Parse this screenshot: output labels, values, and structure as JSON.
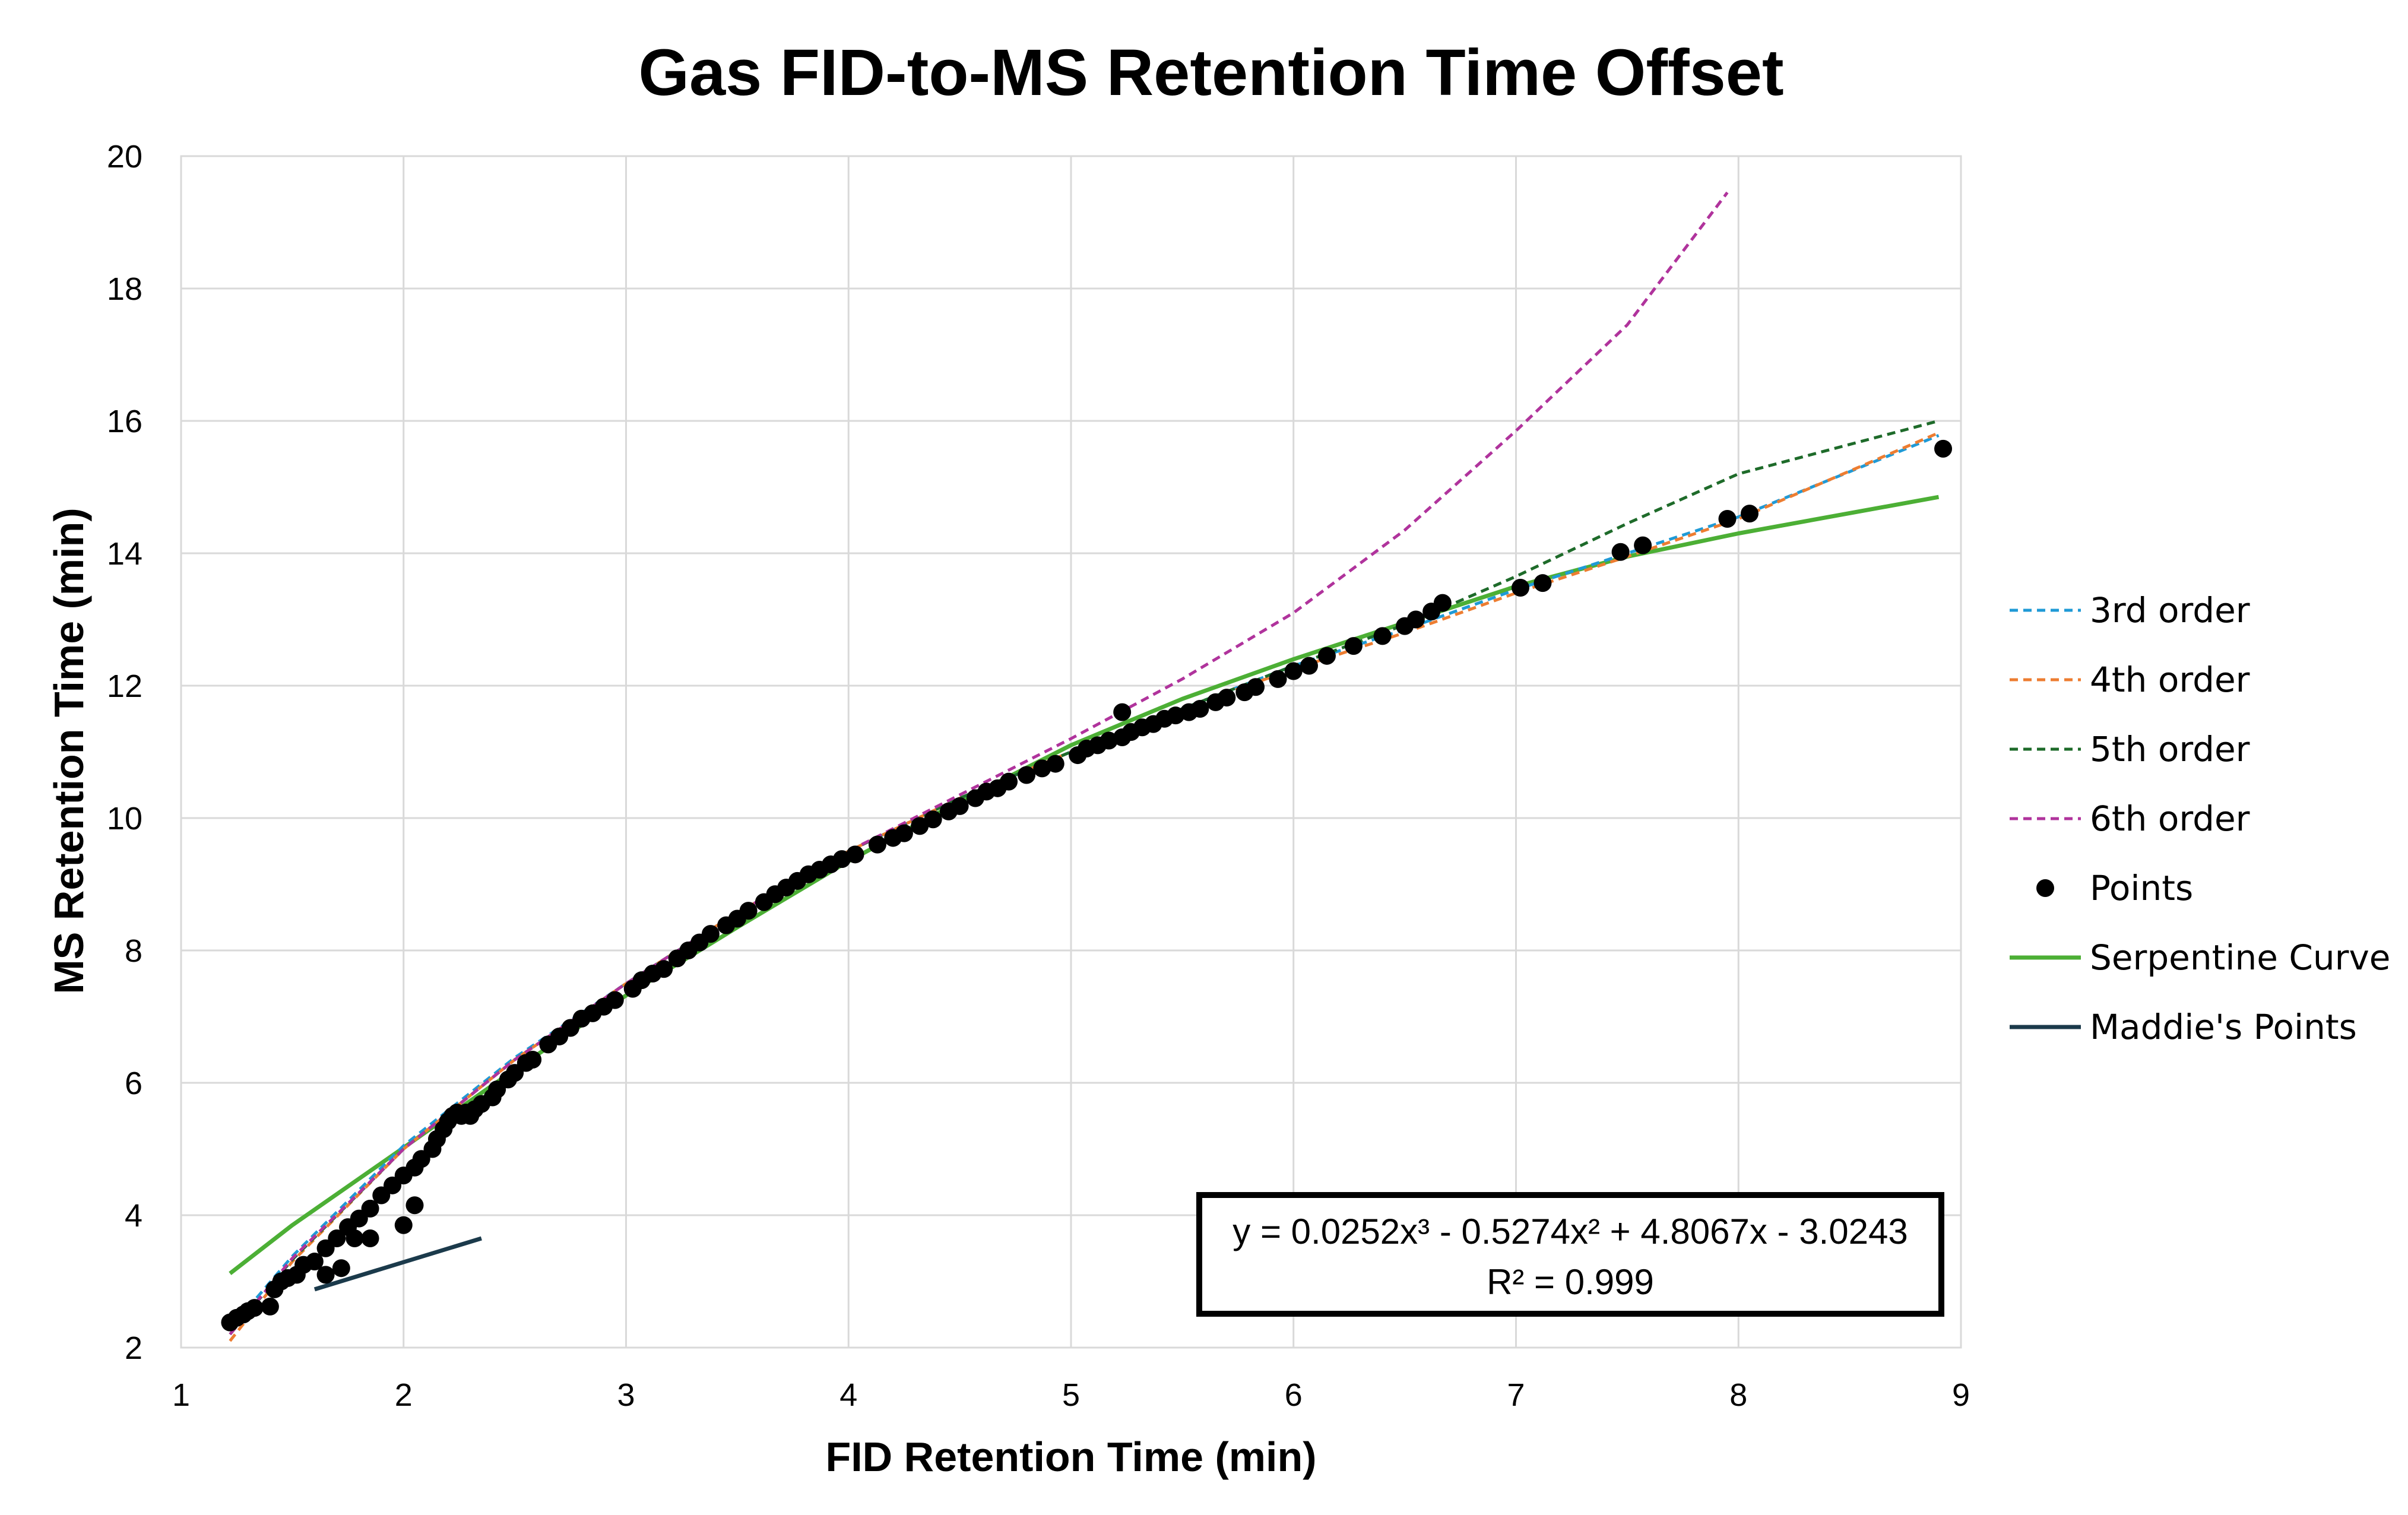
{
  "chart_data": {
    "type": "scatter",
    "title": "Gas FID-to-MS Retention Time Offset",
    "xlabel": "FID Retention Time (min)",
    "ylabel": "MS Retention Time (min)",
    "xlim": [
      1,
      9
    ],
    "ylim": [
      2,
      20
    ],
    "xticks": [
      1,
      2,
      3,
      4,
      5,
      6,
      7,
      8,
      9
    ],
    "yticks": [
      2,
      4,
      6,
      8,
      10,
      12,
      14,
      16,
      18,
      20
    ],
    "grid": true,
    "legend_position": "right",
    "trendline_label": {
      "equation": "y = 0.0252x³ - 0.5274x² + 4.8067x - 3.0243",
      "r2": "R² = 0.999"
    },
    "series": [
      {
        "name": "3rd order",
        "kind": "dashed-line",
        "color": "#1f9ad6",
        "x": [
          1.22,
          1.5,
          2,
          2.5,
          3,
          3.5,
          4,
          4.5,
          5,
          5.5,
          6,
          6.5,
          7,
          7.5,
          8,
          8.9
        ],
        "y": [
          2.28,
          3.38,
          5.05,
          6.38,
          7.5,
          8.57,
          9.5,
          10.3,
          11.0,
          11.65,
          12.3,
          12.85,
          13.45,
          14.0,
          14.55,
          15.78
        ]
      },
      {
        "name": "4th order",
        "kind": "dashed-line",
        "color": "#ed7d31",
        "x": [
          1.22,
          1.5,
          2,
          2.5,
          3,
          3.5,
          4,
          4.5,
          5,
          5.5,
          6,
          6.5,
          7,
          7.5,
          8,
          8.9
        ],
        "y": [
          2.1,
          3.3,
          5.0,
          6.35,
          7.5,
          8.57,
          9.5,
          10.3,
          11.0,
          11.65,
          12.25,
          12.8,
          13.4,
          13.95,
          14.52,
          15.82
        ]
      },
      {
        "name": "5th order",
        "kind": "dashed-line",
        "color": "#1e6b2a",
        "x": [
          1.22,
          1.5,
          2,
          2.5,
          3,
          3.5,
          4,
          4.5,
          5,
          5.5,
          6,
          6.5,
          7,
          7.5,
          8,
          8.9
        ],
        "y": [
          2.2,
          3.33,
          5.0,
          6.35,
          7.5,
          8.57,
          9.5,
          10.3,
          11.0,
          11.65,
          12.3,
          12.92,
          13.65,
          14.45,
          15.2,
          16.0
        ]
      },
      {
        "name": "6th order",
        "kind": "dashed-line",
        "color": "#b0339c",
        "x": [
          1.22,
          1.5,
          2,
          2.5,
          3,
          3.5,
          4,
          4.5,
          5,
          5.5,
          6,
          6.5,
          7,
          7.5,
          7.95
        ],
        "y": [
          2.2,
          3.35,
          5.0,
          6.35,
          7.5,
          8.57,
          9.5,
          10.35,
          11.2,
          12.1,
          13.1,
          14.35,
          15.85,
          17.45,
          19.45
        ]
      },
      {
        "name": "Points",
        "kind": "markers",
        "color": "#000000",
        "x": [
          1.22,
          1.25,
          1.28,
          1.3,
          1.33,
          1.4,
          1.42,
          1.45,
          1.48,
          1.52,
          1.55,
          1.6,
          1.65,
          1.7,
          1.75,
          1.8,
          1.85,
          1.9,
          1.95,
          2.0,
          2.05,
          2.08,
          2.13,
          2.15,
          2.18,
          2.2,
          2.22,
          2.24,
          2.26,
          2.28,
          2.3,
          2.32,
          2.35,
          2.4,
          2.42,
          2.47,
          2.5,
          2.55,
          2.58,
          2.65,
          2.7,
          2.75,
          2.8,
          2.85,
          2.9,
          2.95,
          3.03,
          3.07,
          3.12,
          3.17,
          3.23,
          3.28,
          3.33,
          3.38,
          3.45,
          3.5,
          3.55,
          3.62,
          3.67,
          3.72,
          3.77,
          3.82,
          3.87,
          3.92,
          3.97,
          4.03,
          4.13,
          4.2,
          4.25,
          4.32,
          4.38,
          4.45,
          4.5,
          4.57,
          4.62,
          4.67,
          4.72,
          4.8,
          4.87,
          4.93,
          5.03,
          5.07,
          5.12,
          5.17,
          5.23,
          5.27,
          5.32,
          5.37,
          5.42,
          5.47,
          5.53,
          5.58,
          5.65,
          5.7,
          5.78,
          5.83,
          5.93,
          6.0,
          6.07,
          6.15,
          6.27,
          6.4,
          6.5,
          6.55,
          6.62,
          6.67,
          7.02,
          7.12,
          7.47,
          7.57,
          7.95,
          8.05,
          8.92,
          1.65,
          1.72,
          1.78,
          1.85,
          2.0,
          2.05,
          5.23
        ],
        "y": [
          2.38,
          2.45,
          2.5,
          2.55,
          2.6,
          2.62,
          2.88,
          3.0,
          3.05,
          3.1,
          3.25,
          3.3,
          3.5,
          3.65,
          3.82,
          3.95,
          4.1,
          4.3,
          4.45,
          4.6,
          4.72,
          4.85,
          5.0,
          5.15,
          5.3,
          5.42,
          5.5,
          5.55,
          5.5,
          5.55,
          5.5,
          5.6,
          5.68,
          5.78,
          5.9,
          6.05,
          6.15,
          6.3,
          6.35,
          6.58,
          6.7,
          6.83,
          6.97,
          7.05,
          7.15,
          7.25,
          7.42,
          7.55,
          7.65,
          7.72,
          7.88,
          8.0,
          8.12,
          8.25,
          8.38,
          8.48,
          8.6,
          8.73,
          8.85,
          8.95,
          9.05,
          9.15,
          9.22,
          9.3,
          9.38,
          9.45,
          9.6,
          9.7,
          9.77,
          9.88,
          9.98,
          10.1,
          10.18,
          10.3,
          10.4,
          10.45,
          10.55,
          10.65,
          10.75,
          10.82,
          10.95,
          11.05,
          11.1,
          11.17,
          11.22,
          11.3,
          11.37,
          11.42,
          11.5,
          11.55,
          11.6,
          11.65,
          11.75,
          11.82,
          11.9,
          11.98,
          12.1,
          12.22,
          12.3,
          12.45,
          12.6,
          12.75,
          12.9,
          13.0,
          13.12,
          13.25,
          13.48,
          13.55,
          14.02,
          14.12,
          14.52,
          14.6,
          15.58,
          3.1,
          3.2,
          3.65,
          3.65,
          3.85,
          4.15,
          11.6
        ]
      },
      {
        "name": "Serpentine Curve",
        "kind": "solid-line",
        "color": "#4caf35",
        "x": [
          1.22,
          1.5,
          2,
          2.5,
          3,
          3.5,
          4,
          4.5,
          5,
          5.5,
          6,
          6.5,
          7,
          7.5,
          8,
          8.9
        ],
        "y": [
          3.12,
          3.85,
          5.02,
          6.2,
          7.32,
          8.35,
          9.35,
          10.25,
          11.1,
          11.8,
          12.4,
          12.95,
          13.5,
          13.95,
          14.3,
          14.85
        ]
      },
      {
        "name": "Maddie's Points",
        "kind": "solid-line",
        "color": "#1b3a4b",
        "x": [
          1.6,
          2.35
        ],
        "y": [
          2.88,
          3.65
        ]
      }
    ]
  }
}
